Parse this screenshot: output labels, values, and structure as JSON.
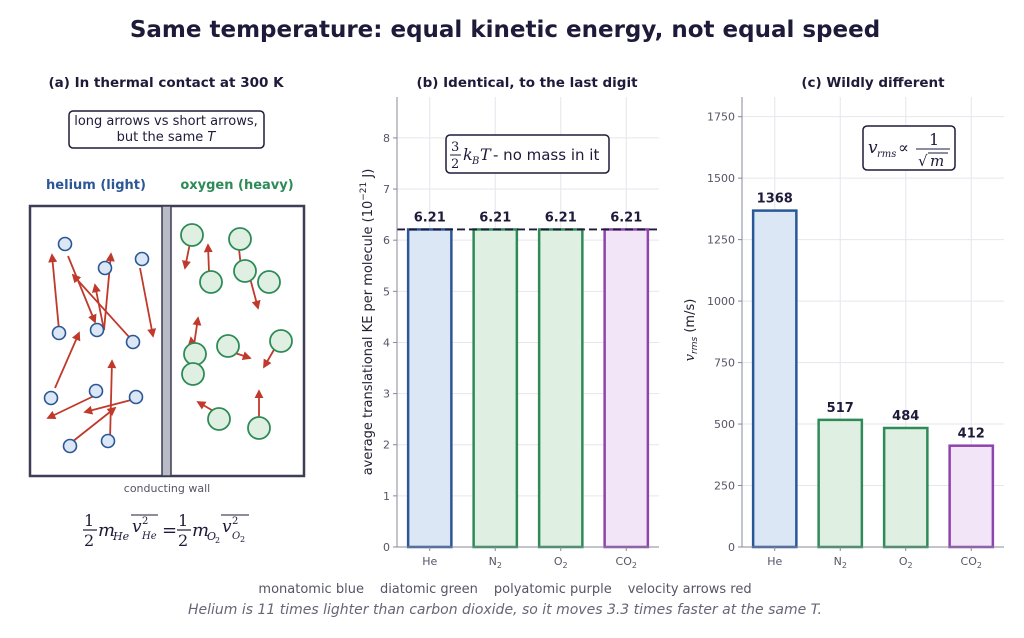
{
  "title": "Same temperature: equal kinetic energy, not equal speed",
  "colors": {
    "text": "#1e1b3a",
    "blue_edge": "#2b5797",
    "blue_fill": "#dce7f6",
    "green_edge": "#2e8b57",
    "green_fill": "#dff0e3",
    "purple_edge": "#8e44ad",
    "purple_fill": "#f3e5f8",
    "arrow": "#c0392b",
    "wall": "#b9bcc6"
  },
  "panel_a": {
    "title": "(a)  In thermal contact at 300 K",
    "callout_line1": "long arrows vs short arrows,",
    "callout_line2_prefix": "but the same ",
    "callout_line2_var": "T",
    "helium_label": "helium  (light)",
    "oxygen_label": "oxygen  (heavy)",
    "wall_label": "conducting wall",
    "equation": "½ m_He ⟨v²_He⟩ = ½ m_O₂ ⟨v²_O₂⟩"
  },
  "chart_data": [
    {
      "type": "bar",
      "title": "(b)  Identical, to the last digit",
      "categories": [
        "He",
        "N2",
        "O2",
        "CO2"
      ],
      "values": [
        6.21,
        6.21,
        6.21,
        6.21
      ],
      "data_labels": [
        "6.21",
        "6.21",
        "6.21",
        "6.21"
      ],
      "ylabel": "average translational KE per molecule  (10⁻²¹ J)",
      "ylim": [
        0,
        8.8
      ],
      "yticks": [
        0,
        1,
        2,
        3,
        4,
        5,
        6,
        7,
        8
      ],
      "reference_line": 6.21,
      "annotation": "(3/2) k_B T - no mass in it",
      "grid": true
    },
    {
      "type": "bar",
      "title": "(c)  Wildly different",
      "categories": [
        "He",
        "N2",
        "O2",
        "CO2"
      ],
      "values": [
        1368,
        517,
        484,
        412
      ],
      "data_labels": [
        "1368",
        "517",
        "484",
        "412"
      ],
      "ylabel": "v_rms  (m/s)",
      "ylim": [
        0,
        1830
      ],
      "yticks": [
        0,
        250,
        500,
        750,
        1000,
        1250,
        1500,
        1750
      ],
      "annotation": "v_rms ∝ 1/√m",
      "grid": true
    }
  ],
  "legend_text": [
    "monatomic blue",
    "diatomic green",
    "polyatomic purple",
    "velocity arrows red"
  ],
  "caption": "Helium is 11 times lighter than carbon dioxide, so it moves 3.3 times faster at the same T."
}
